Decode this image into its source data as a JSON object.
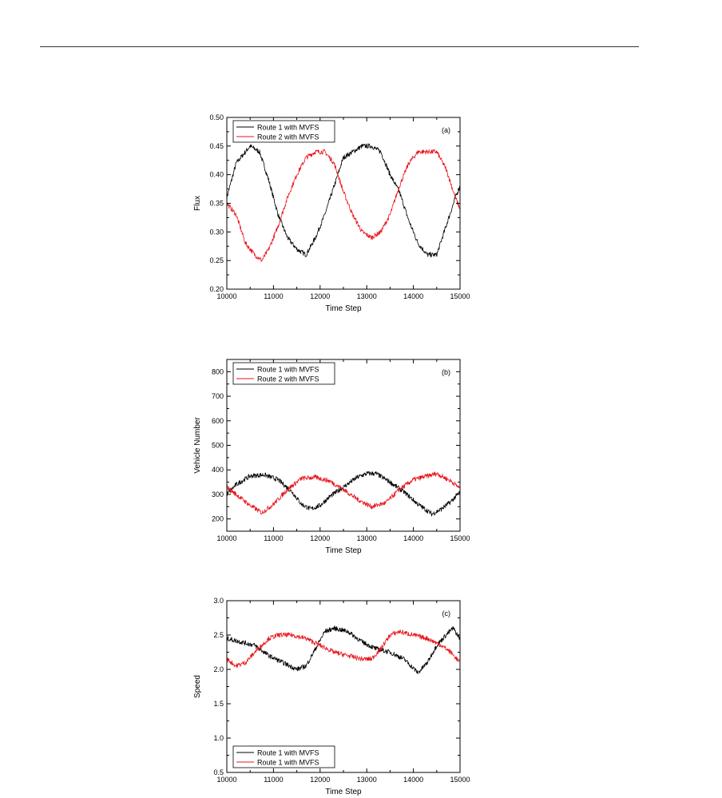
{
  "chart_data": [
    {
      "panel": "(a)",
      "type": "line",
      "xlabel": "Time Step",
      "ylabel": "Flux",
      "xlim": [
        10000,
        15000
      ],
      "ylim": [
        0.2,
        0.5
      ],
      "x_ticks": [
        "10000",
        "11000",
        "12000",
        "13000",
        "14000",
        "15000"
      ],
      "y_ticks": [
        "0.20",
        "0.25",
        "0.30",
        "0.35",
        "0.40",
        "0.45",
        "0.50"
      ],
      "legend_position": "top-left",
      "grid": false,
      "series": [
        {
          "name": "Route 1 with MVFS",
          "color": "#000000",
          "points": [
            [
              10000,
              0.36
            ],
            [
              10200,
              0.42
            ],
            [
              10500,
              0.45
            ],
            [
              10700,
              0.44
            ],
            [
              10900,
              0.39
            ],
            [
              11100,
              0.33
            ],
            [
              11300,
              0.29
            ],
            [
              11500,
              0.27
            ],
            [
              11700,
              0.26
            ],
            [
              11900,
              0.29
            ],
            [
              12100,
              0.33
            ],
            [
              12300,
              0.38
            ],
            [
              12500,
              0.43
            ],
            [
              12700,
              0.44
            ],
            [
              12900,
              0.45
            ],
            [
              13100,
              0.45
            ],
            [
              13300,
              0.44
            ],
            [
              13500,
              0.4
            ],
            [
              13700,
              0.37
            ],
            [
              13900,
              0.32
            ],
            [
              14100,
              0.28
            ],
            [
              14300,
              0.26
            ],
            [
              14500,
              0.26
            ],
            [
              14700,
              0.31
            ],
            [
              14900,
              0.36
            ],
            [
              15000,
              0.38
            ]
          ]
        },
        {
          "name": "Route 2 with MVFS",
          "color": "#e8141b",
          "points": [
            [
              10000,
              0.35
            ],
            [
              10200,
              0.33
            ],
            [
              10400,
              0.28
            ],
            [
              10600,
              0.26
            ],
            [
              10750,
              0.25
            ],
            [
              10900,
              0.27
            ],
            [
              11100,
              0.31
            ],
            [
              11300,
              0.36
            ],
            [
              11500,
              0.4
            ],
            [
              11700,
              0.43
            ],
            [
              11900,
              0.44
            ],
            [
              12100,
              0.44
            ],
            [
              12300,
              0.42
            ],
            [
              12500,
              0.37
            ],
            [
              12700,
              0.33
            ],
            [
              12900,
              0.3
            ],
            [
              13100,
              0.29
            ],
            [
              13300,
              0.3
            ],
            [
              13500,
              0.33
            ],
            [
              13700,
              0.38
            ],
            [
              13900,
              0.42
            ],
            [
              14100,
              0.44
            ],
            [
              14300,
              0.44
            ],
            [
              14500,
              0.44
            ],
            [
              14700,
              0.41
            ],
            [
              14900,
              0.36
            ],
            [
              15000,
              0.34
            ]
          ]
        }
      ]
    },
    {
      "panel": "(b)",
      "type": "line",
      "xlabel": "Time Step",
      "ylabel": "Vehicle Number",
      "xlim": [
        10000,
        15000
      ],
      "ylim": [
        150,
        850
      ],
      "x_ticks": [
        "10000",
        "11000",
        "12000",
        "13000",
        "14000",
        "15000"
      ],
      "y_ticks": [
        "200",
        "300",
        "400",
        "500",
        "600",
        "700",
        "800"
      ],
      "legend_position": "top-left",
      "grid": false,
      "series": [
        {
          "name": "Route 1 with MVFS",
          "color": "#000000",
          "points": [
            [
              10000,
              300
            ],
            [
              10200,
              340
            ],
            [
              10500,
              375
            ],
            [
              10800,
              380
            ],
            [
              11100,
              360
            ],
            [
              11400,
              310
            ],
            [
              11600,
              260
            ],
            [
              11800,
              240
            ],
            [
              12000,
              255
            ],
            [
              12200,
              290
            ],
            [
              12500,
              330
            ],
            [
              12800,
              370
            ],
            [
              13000,
              385
            ],
            [
              13200,
              385
            ],
            [
              13500,
              350
            ],
            [
              13800,
              310
            ],
            [
              14100,
              260
            ],
            [
              14400,
              220
            ],
            [
              14600,
              240
            ],
            [
              14800,
              270
            ],
            [
              15000,
              310
            ]
          ]
        },
        {
          "name": "Route 2 with MVFS",
          "color": "#e8141b",
          "points": [
            [
              10000,
              330
            ],
            [
              10200,
              300
            ],
            [
              10500,
              255
            ],
            [
              10750,
              225
            ],
            [
              11000,
              260
            ],
            [
              11300,
              320
            ],
            [
              11600,
              365
            ],
            [
              11900,
              370
            ],
            [
              12200,
              355
            ],
            [
              12500,
              320
            ],
            [
              12800,
              280
            ],
            [
              13100,
              250
            ],
            [
              13400,
              265
            ],
            [
              13700,
              320
            ],
            [
              14000,
              360
            ],
            [
              14300,
              375
            ],
            [
              14500,
              385
            ],
            [
              14800,
              355
            ],
            [
              15000,
              325
            ]
          ]
        }
      ]
    },
    {
      "panel": "(c)",
      "type": "line",
      "xlabel": "Time Step",
      "ylabel": "Speed",
      "xlim": [
        10000,
        15000
      ],
      "ylim": [
        0.5,
        3.0
      ],
      "x_ticks": [
        "10000",
        "11000",
        "12000",
        "13000",
        "14000",
        "15000"
      ],
      "y_ticks": [
        "0.5",
        "1.0",
        "1.5",
        "2.0",
        "2.5",
        "3.0"
      ],
      "legend_position": "bottom-left",
      "grid": false,
      "series": [
        {
          "name": "Route 1 with MVFS",
          "color": "#000000",
          "points": [
            [
              10000,
              2.45
            ],
            [
              10300,
              2.4
            ],
            [
              10600,
              2.35
            ],
            [
              10900,
              2.2
            ],
            [
              11200,
              2.1
            ],
            [
              11500,
              2.0
            ],
            [
              11700,
              2.05
            ],
            [
              11900,
              2.3
            ],
            [
              12100,
              2.55
            ],
            [
              12300,
              2.6
            ],
            [
              12600,
              2.55
            ],
            [
              12900,
              2.4
            ],
            [
              13200,
              2.3
            ],
            [
              13500,
              2.25
            ],
            [
              13800,
              2.15
            ],
            [
              14100,
              1.95
            ],
            [
              14300,
              2.1
            ],
            [
              14500,
              2.35
            ],
            [
              14700,
              2.5
            ],
            [
              14850,
              2.6
            ],
            [
              15000,
              2.45
            ]
          ]
        },
        {
          "name": "Route 1 with MVFS",
          "color": "#e8141b",
          "points": [
            [
              10000,
              2.15
            ],
            [
              10200,
              2.05
            ],
            [
              10400,
              2.1
            ],
            [
              10600,
              2.25
            ],
            [
              10900,
              2.45
            ],
            [
              11100,
              2.5
            ],
            [
              11400,
              2.5
            ],
            [
              11700,
              2.45
            ],
            [
              12000,
              2.35
            ],
            [
              12300,
              2.25
            ],
            [
              12600,
              2.2
            ],
            [
              12900,
              2.15
            ],
            [
              13100,
              2.15
            ],
            [
              13300,
              2.3
            ],
            [
              13500,
              2.5
            ],
            [
              13700,
              2.55
            ],
            [
              14000,
              2.5
            ],
            [
              14300,
              2.45
            ],
            [
              14600,
              2.35
            ],
            [
              14800,
              2.25
            ],
            [
              15000,
              2.1
            ]
          ]
        }
      ]
    }
  ]
}
